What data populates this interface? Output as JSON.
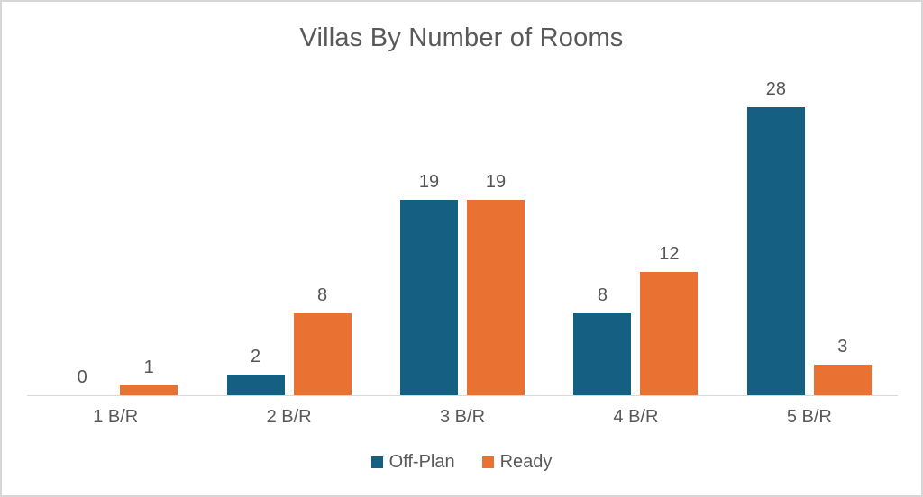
{
  "chart_data": {
    "type": "bar",
    "title": "Villas By Number of Rooms",
    "categories": [
      "1 B/R",
      "2 B/R",
      "3 B/R",
      "4 B/R",
      "5 B/R"
    ],
    "series": [
      {
        "name": "Off-Plan",
        "color": "#156082",
        "values": [
          0,
          2,
          19,
          8,
          28
        ]
      },
      {
        "name": "Ready",
        "color": "#E97132",
        "values": [
          1,
          8,
          19,
          12,
          3
        ]
      }
    ],
    "ylim": [
      0,
      30
    ],
    "grid": false,
    "y_axis_visible": false,
    "data_labels": true,
    "legend_position": "bottom",
    "colors": {
      "title_text": "#595959",
      "label_text": "#595959",
      "axis_line": "#d9d9d9"
    }
  }
}
